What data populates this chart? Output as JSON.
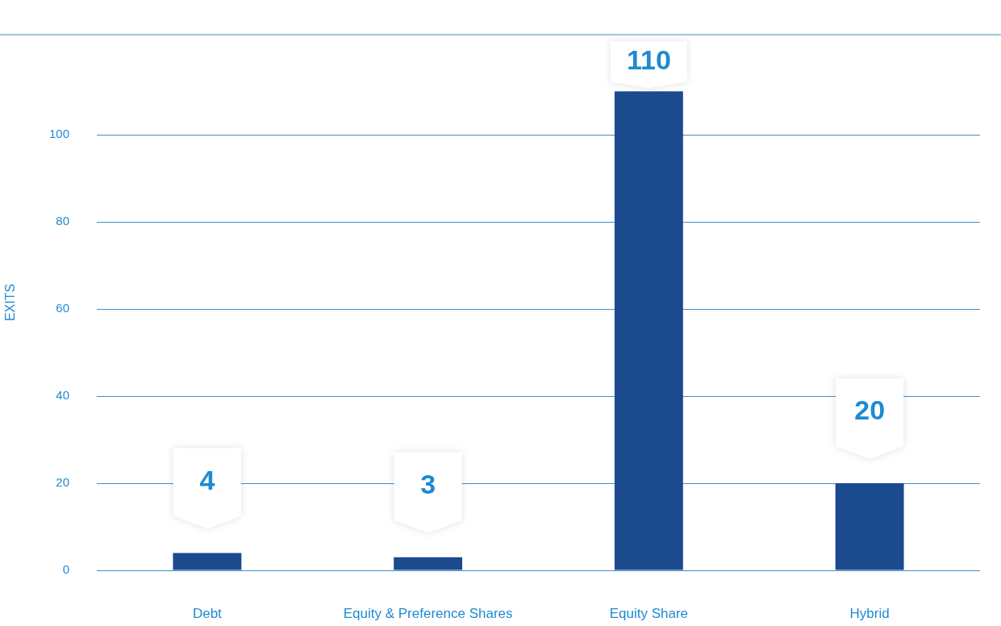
{
  "chart_data": {
    "type": "bar",
    "ylabel": "EXITS",
    "categories": [
      "Debt",
      "Equity & Preference Shares",
      "Equity Share",
      "Hybrid"
    ],
    "values": [
      4,
      3,
      110,
      20
    ],
    "color": "#1b4a8f",
    "ylim": [
      0,
      123
    ],
    "yticks": [
      0,
      20,
      40,
      60,
      80,
      100
    ],
    "grid": "y",
    "data_labels": true
  }
}
